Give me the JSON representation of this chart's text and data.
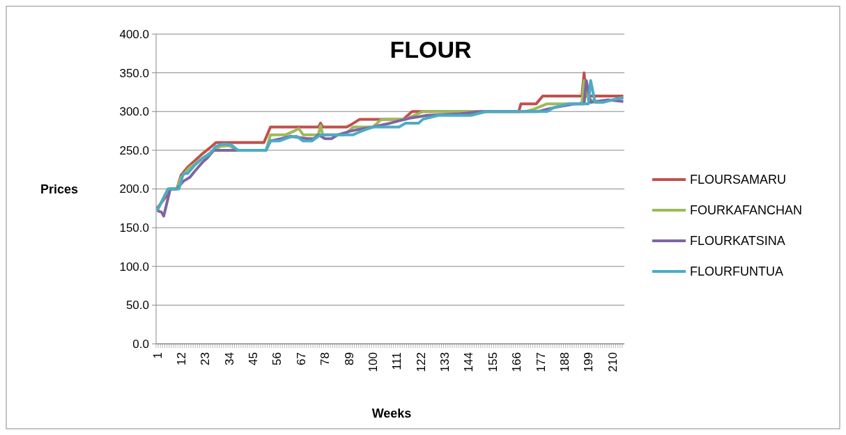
{
  "chart_data": {
    "type": "line",
    "title": "FLOUR",
    "xlabel": "Weeks",
    "ylabel": "Prices",
    "xlim": [
      0.5,
      215.5
    ],
    "xticks": [
      1,
      12,
      23,
      34,
      45,
      56,
      67,
      78,
      89,
      100,
      111,
      122,
      133,
      144,
      155,
      166,
      177,
      188,
      199,
      210
    ],
    "ylim": [
      0,
      400
    ],
    "yticks": [
      {
        "value": 0,
        "label": "0.0"
      },
      {
        "value": 50,
        "label": "50.0"
      },
      {
        "value": 100,
        "label": "100.0"
      },
      {
        "value": 150,
        "label": "150.0"
      },
      {
        "value": 200,
        "label": "200.0"
      },
      {
        "value": 250,
        "label": "250.0"
      },
      {
        "value": 300,
        "label": "300.0"
      },
      {
        "value": 350,
        "label": "350.0"
      },
      {
        "value": 400,
        "label": "400.0"
      }
    ],
    "grid": "y",
    "legend": "right",
    "marker": "none",
    "line_style": "solid",
    "series": [
      {
        "name": "FLOURSAMARU",
        "color": "#c0504d",
        "x": [
          1,
          5,
          7,
          10,
          12,
          15,
          22,
          26,
          28,
          50,
          53,
          75,
          76,
          77,
          88,
          90,
          94,
          114,
          118,
          167,
          168,
          175,
          178,
          196,
          197,
          198,
          215
        ],
        "values": [
          175,
          190,
          200,
          200,
          218,
          228,
          246,
          255,
          260,
          260,
          280,
          280,
          285,
          280,
          280,
          283,
          290,
          290,
          300,
          300,
          310,
          310,
          320,
          320,
          350,
          320,
          320
        ]
      },
      {
        "name": "FOURKAFANCHAN",
        "color": "#9bbb59",
        "x": [
          1,
          6,
          10,
          12,
          16,
          22,
          27,
          30,
          34,
          38,
          51,
          53,
          60,
          64,
          66,
          68,
          75,
          76,
          77,
          87,
          91,
          100,
          104,
          115,
          123,
          170,
          174,
          180,
          195,
          196,
          197,
          199,
          205,
          210,
          215
        ],
        "values": [
          172,
          200,
          200,
          215,
          228,
          240,
          250,
          255,
          256,
          250,
          250,
          270,
          270,
          275,
          278,
          270,
          270,
          282,
          270,
          270,
          280,
          280,
          290,
          290,
          300,
          300,
          303,
          310,
          310,
          312,
          340,
          315,
          312,
          315,
          318
        ]
      },
      {
        "name": "FLOURKATSINA",
        "color": "#8064a2",
        "x": [
          1,
          3,
          4,
          7,
          10,
          13,
          16,
          18,
          22,
          24,
          27,
          51,
          53,
          58,
          62,
          70,
          73,
          75,
          78,
          81,
          84,
          90,
          100,
          108,
          112,
          118,
          125,
          140,
          150,
          176,
          180,
          185,
          193,
          197,
          198,
          200,
          208,
          215
        ],
        "values": [
          172,
          170,
          165,
          200,
          200,
          210,
          215,
          222,
          235,
          240,
          250,
          250,
          262,
          265,
          268,
          265,
          265,
          270,
          265,
          265,
          270,
          275,
          280,
          285,
          288,
          292,
          295,
          297,
          300,
          300,
          303,
          306,
          310,
          310,
          340,
          312,
          315,
          313
        ]
      },
      {
        "name": "FLOURFUNTUA",
        "color": "#4bacc6",
        "x": [
          1,
          6,
          11,
          13,
          15,
          18,
          22,
          25,
          28,
          31,
          35,
          38,
          51,
          53,
          57,
          62,
          65,
          68,
          72,
          76,
          91,
          95,
          100,
          112,
          115,
          121,
          123,
          130,
          145,
          152,
          180,
          183,
          190,
          199,
          200,
          202,
          206,
          210,
          215
        ],
        "values": [
          172,
          200,
          200,
          220,
          220,
          230,
          240,
          245,
          255,
          258,
          257,
          250,
          250,
          262,
          262,
          267,
          268,
          262,
          262,
          270,
          270,
          275,
          280,
          280,
          285,
          285,
          290,
          295,
          295,
          300,
          300,
          305,
          310,
          310,
          340,
          312,
          312,
          315,
          318
        ]
      }
    ]
  }
}
